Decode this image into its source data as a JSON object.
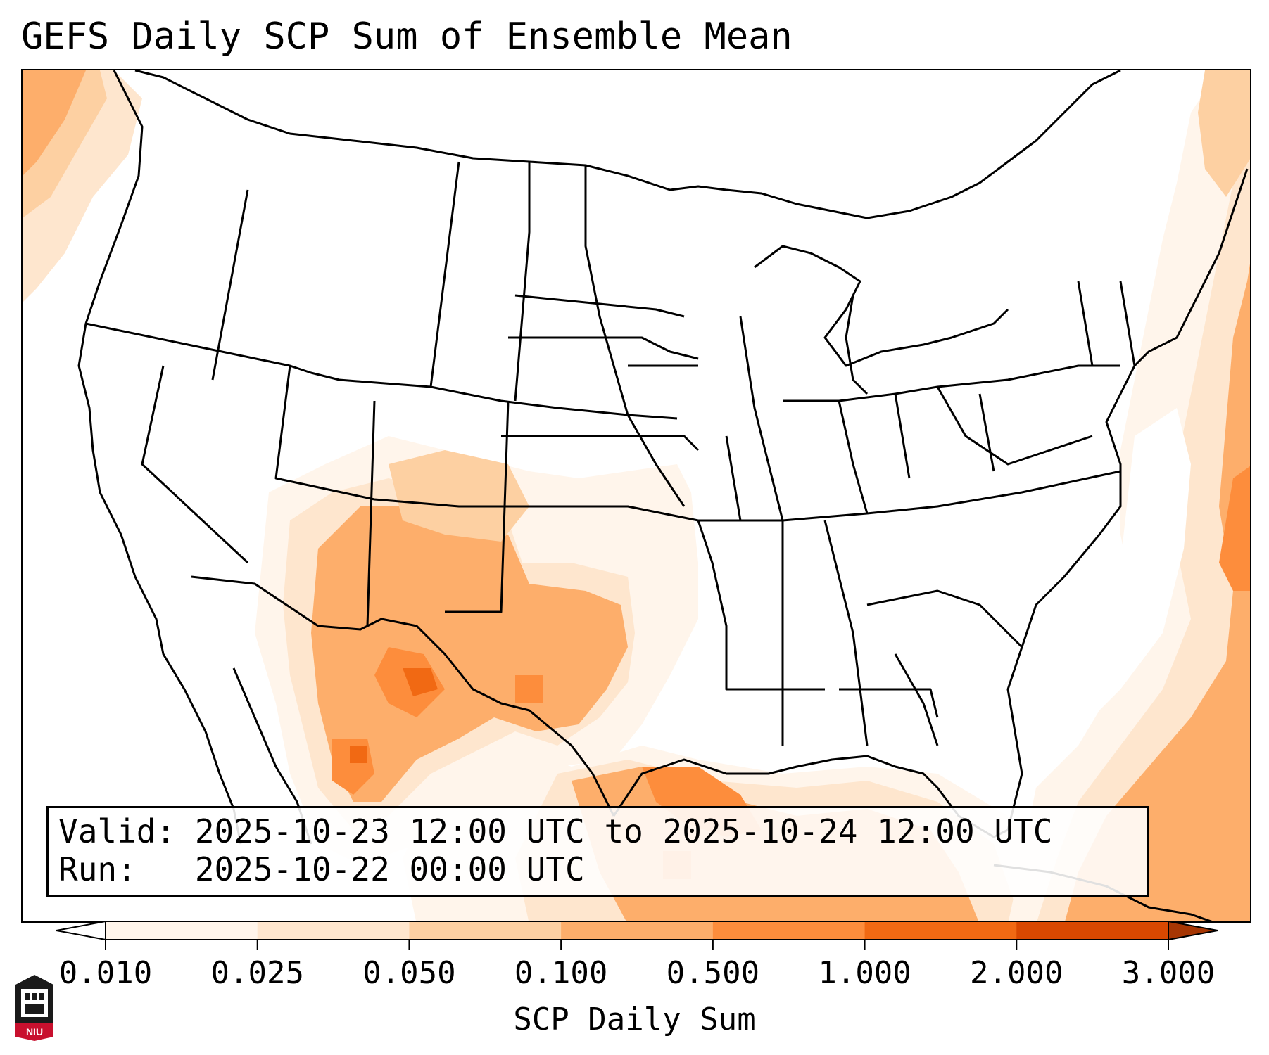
{
  "title": "GEFS Daily SCP Sum of Ensemble Mean",
  "info": {
    "valid": "Valid: 2025-10-23 12:00 UTC to 2025-10-24 12:00 UTC",
    "run": "Run:   2025-10-22 00:00 UTC"
  },
  "colorbar": {
    "label": "SCP Daily Sum",
    "ticks": [
      "0.010",
      "0.025",
      "0.050",
      "0.100",
      "0.500",
      "1.000",
      "2.000",
      "3.000"
    ],
    "colors": [
      "#fff5eb",
      "#fee6ce",
      "#fdd0a2",
      "#fdae6b",
      "#fd8d3c",
      "#f16913",
      "#d94801"
    ],
    "under_color": "#ffffff",
    "over_color": "#a63603"
  },
  "logo": {
    "text": "NIU",
    "colors": [
      "#c8102e",
      "#000000"
    ]
  }
}
